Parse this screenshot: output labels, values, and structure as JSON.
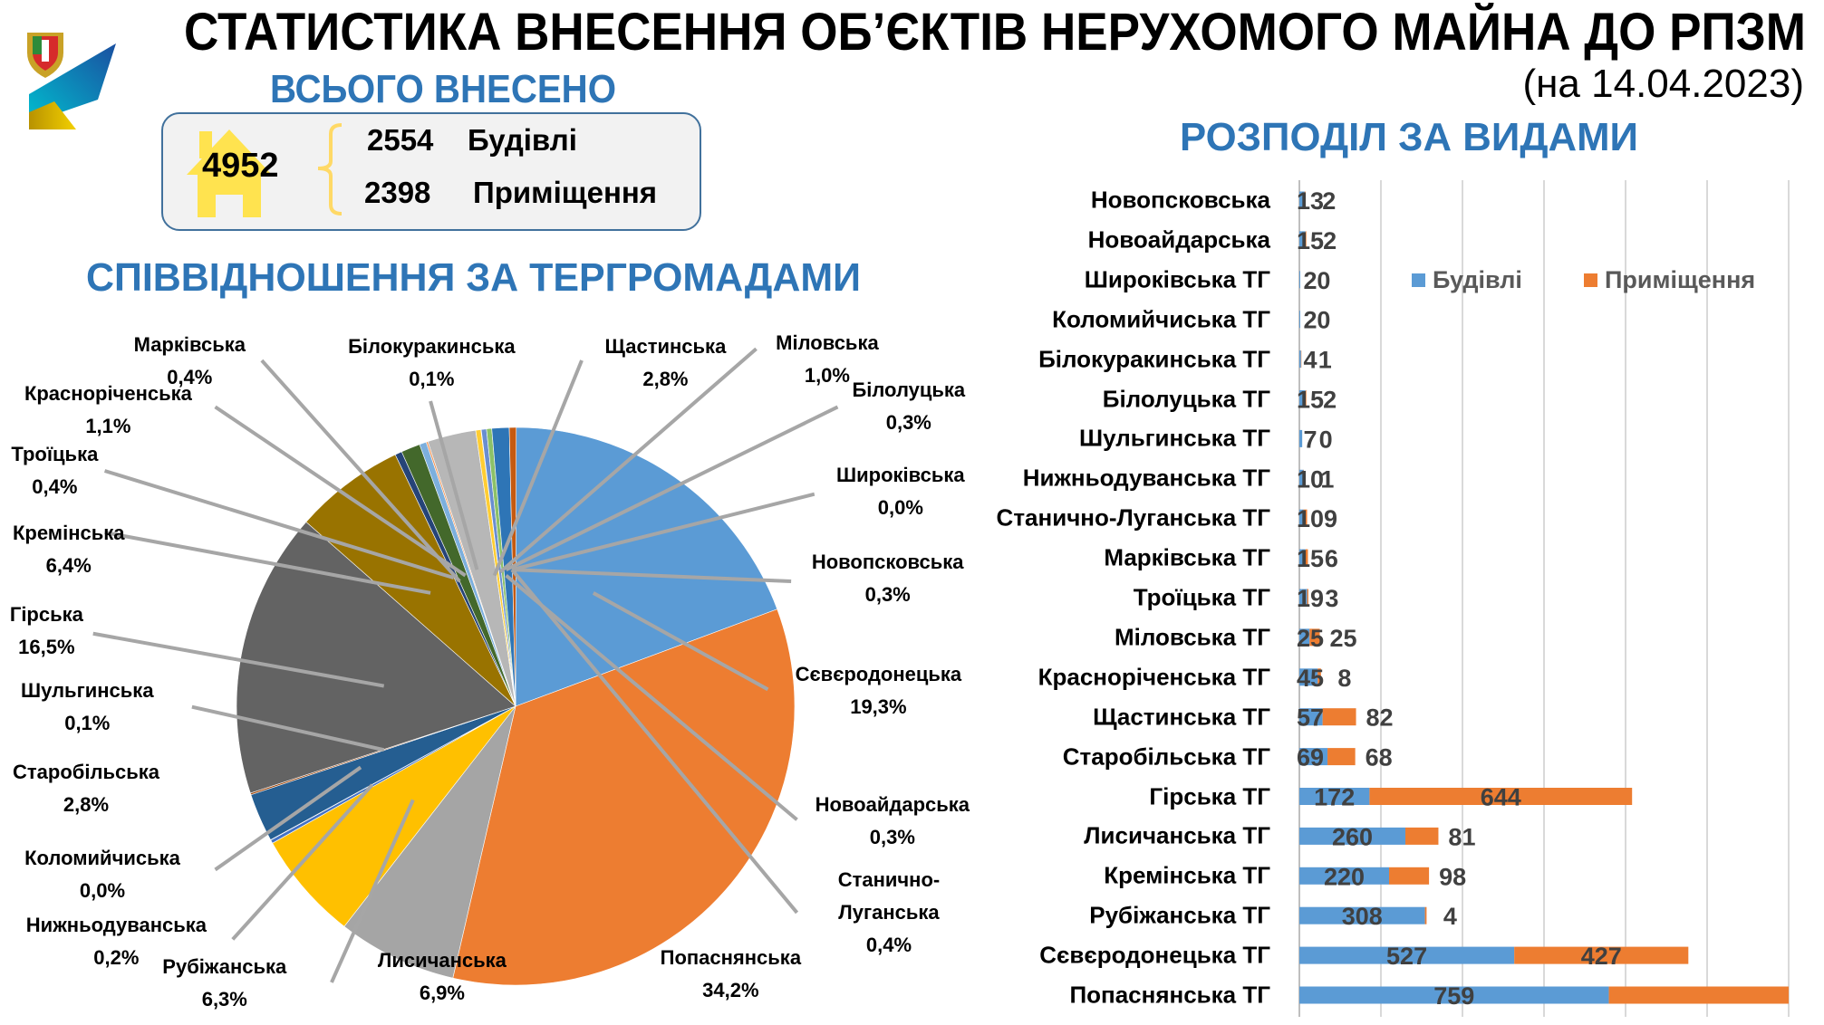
{
  "header": {
    "title": "СТАТИСТИКА ВНЕСЕННЯ ОБ’ЄКТІВ НЕРУХОМОГО МАЙНА ДО РПЗМ",
    "date": "(на 14.04.2023)"
  },
  "summary": {
    "heading": "ВСЬОГО ВНЕСЕНО",
    "total": "4952",
    "buildings_count": "2554",
    "buildings_label": "Будівлі",
    "premises_count": "2398",
    "premises_label": "Приміщення",
    "house_color": "#ffe34f"
  },
  "chart_data": [
    {
      "type": "pie",
      "title": "СПІВВІДНОШЕННЯ ЗА ТЕРГРОМАДАМИ",
      "slices": [
        {
          "label": "Сєвєродонецька",
          "value": 19.3,
          "text": "19,3%",
          "color": "#5b9bd5"
        },
        {
          "label": "Попаснянська",
          "value": 34.2,
          "text": "34,2%",
          "color": "#ed7d31"
        },
        {
          "label": "Лисичанська",
          "value": 6.9,
          "text": "6,9%",
          "color": "#a5a5a5"
        },
        {
          "label": "Рубіжанська",
          "value": 6.3,
          "text": "6,3%",
          "color": "#ffc000"
        },
        {
          "label": "Нижньодуванська",
          "value": 0.2,
          "text": "0,2%",
          "color": "#4472c4"
        },
        {
          "label": "Коломийчиська",
          "value": 0.0,
          "text": "0,0%",
          "color": "#70ad47"
        },
        {
          "label": "Старобільська",
          "value": 2.8,
          "text": "2,8%",
          "color": "#255e91"
        },
        {
          "label": "Шульгинська",
          "value": 0.1,
          "text": "0,1%",
          "color": "#9e480e"
        },
        {
          "label": "Гірська",
          "value": 16.5,
          "text": "16,5%",
          "color": "#636363"
        },
        {
          "label": "Кремінська",
          "value": 6.4,
          "text": "6,4%",
          "color": "#997300"
        },
        {
          "label": "Троїцька",
          "value": 0.4,
          "text": "0,4%",
          "color": "#264478"
        },
        {
          "label": "Красноріченська",
          "value": 1.1,
          "text": "1,1%",
          "color": "#43682b"
        },
        {
          "label": "Марківська",
          "value": 0.4,
          "text": "0,4%",
          "color": "#7cafdd"
        },
        {
          "label": "Білокуракинська",
          "value": 0.1,
          "text": "0,1%",
          "color": "#f1975a"
        },
        {
          "label": "Щастинська",
          "value": 2.8,
          "text": "2,8%",
          "color": "#b7b7b7"
        },
        {
          "label": "Білолуцька",
          "value": 0.3,
          "text": "0,3%",
          "color": "#ffcd33"
        },
        {
          "label": "Широківська",
          "value": 0.0,
          "text": "0,0%",
          "color": "#698ed0"
        },
        {
          "label": "Новопсковська",
          "value": 0.3,
          "text": "0,3%",
          "color": "#698ed0"
        },
        {
          "label": "Новоайдарська",
          "value": 0.3,
          "text": "0,3%",
          "color": "#8cc168"
        },
        {
          "label": "Міловська",
          "value": 1.0,
          "text": "1,0%",
          "color": "#2e75b6"
        },
        {
          "label": "Станично-Луганська",
          "label_lines": [
            "Станично-",
            "Луганська"
          ],
          "value": 0.4,
          "text": "0,4%",
          "color": "#c55a11"
        }
      ]
    },
    {
      "type": "bar",
      "orientation": "horizontal",
      "stacked": true,
      "title": "РОЗПОДІЛ ЗА ВИДАМИ",
      "xlim": [
        0,
        1200
      ],
      "grid": true,
      "legend_position": "top-right",
      "categories": [
        "Новопсковська",
        "Новоайдарська",
        "Широківська ТГ",
        "Коломийчиська ТГ",
        "Білокуракинська ТГ",
        "Білолуцька ТГ",
        "Шульгинська ТГ",
        "Нижньодуванська ТГ",
        "Станично-Луганська ТГ",
        "Марківська ТГ",
        "Троїцька ТГ",
        "Міловська ТГ",
        "Красноріченська ТГ",
        "Щастинська ТГ",
        "Старобільська ТГ",
        "Гірська ТГ",
        "Лисичанська ТГ",
        "Кремінська ТГ",
        "Рубіжанська ТГ",
        "Сєвєродонецька ТГ",
        "Попаснянська ТГ"
      ],
      "series": [
        {
          "name": "Будівлі",
          "color": "#5b9bd5",
          "values": [
            13,
            15,
            2,
            2,
            4,
            15,
            7,
            10,
            10,
            15,
            19,
            25,
            45,
            57,
            69,
            172,
            260,
            220,
            308,
            527,
            759
          ]
        },
        {
          "name": "Приміщення",
          "color": "#ed7d31",
          "values": [
            2,
            2,
            0,
            0,
            1,
            2,
            0,
            1,
            9,
            6,
            3,
            25,
            8,
            82,
            68,
            644,
            81,
            98,
            4,
            427,
            null
          ]
        }
      ]
    }
  ]
}
